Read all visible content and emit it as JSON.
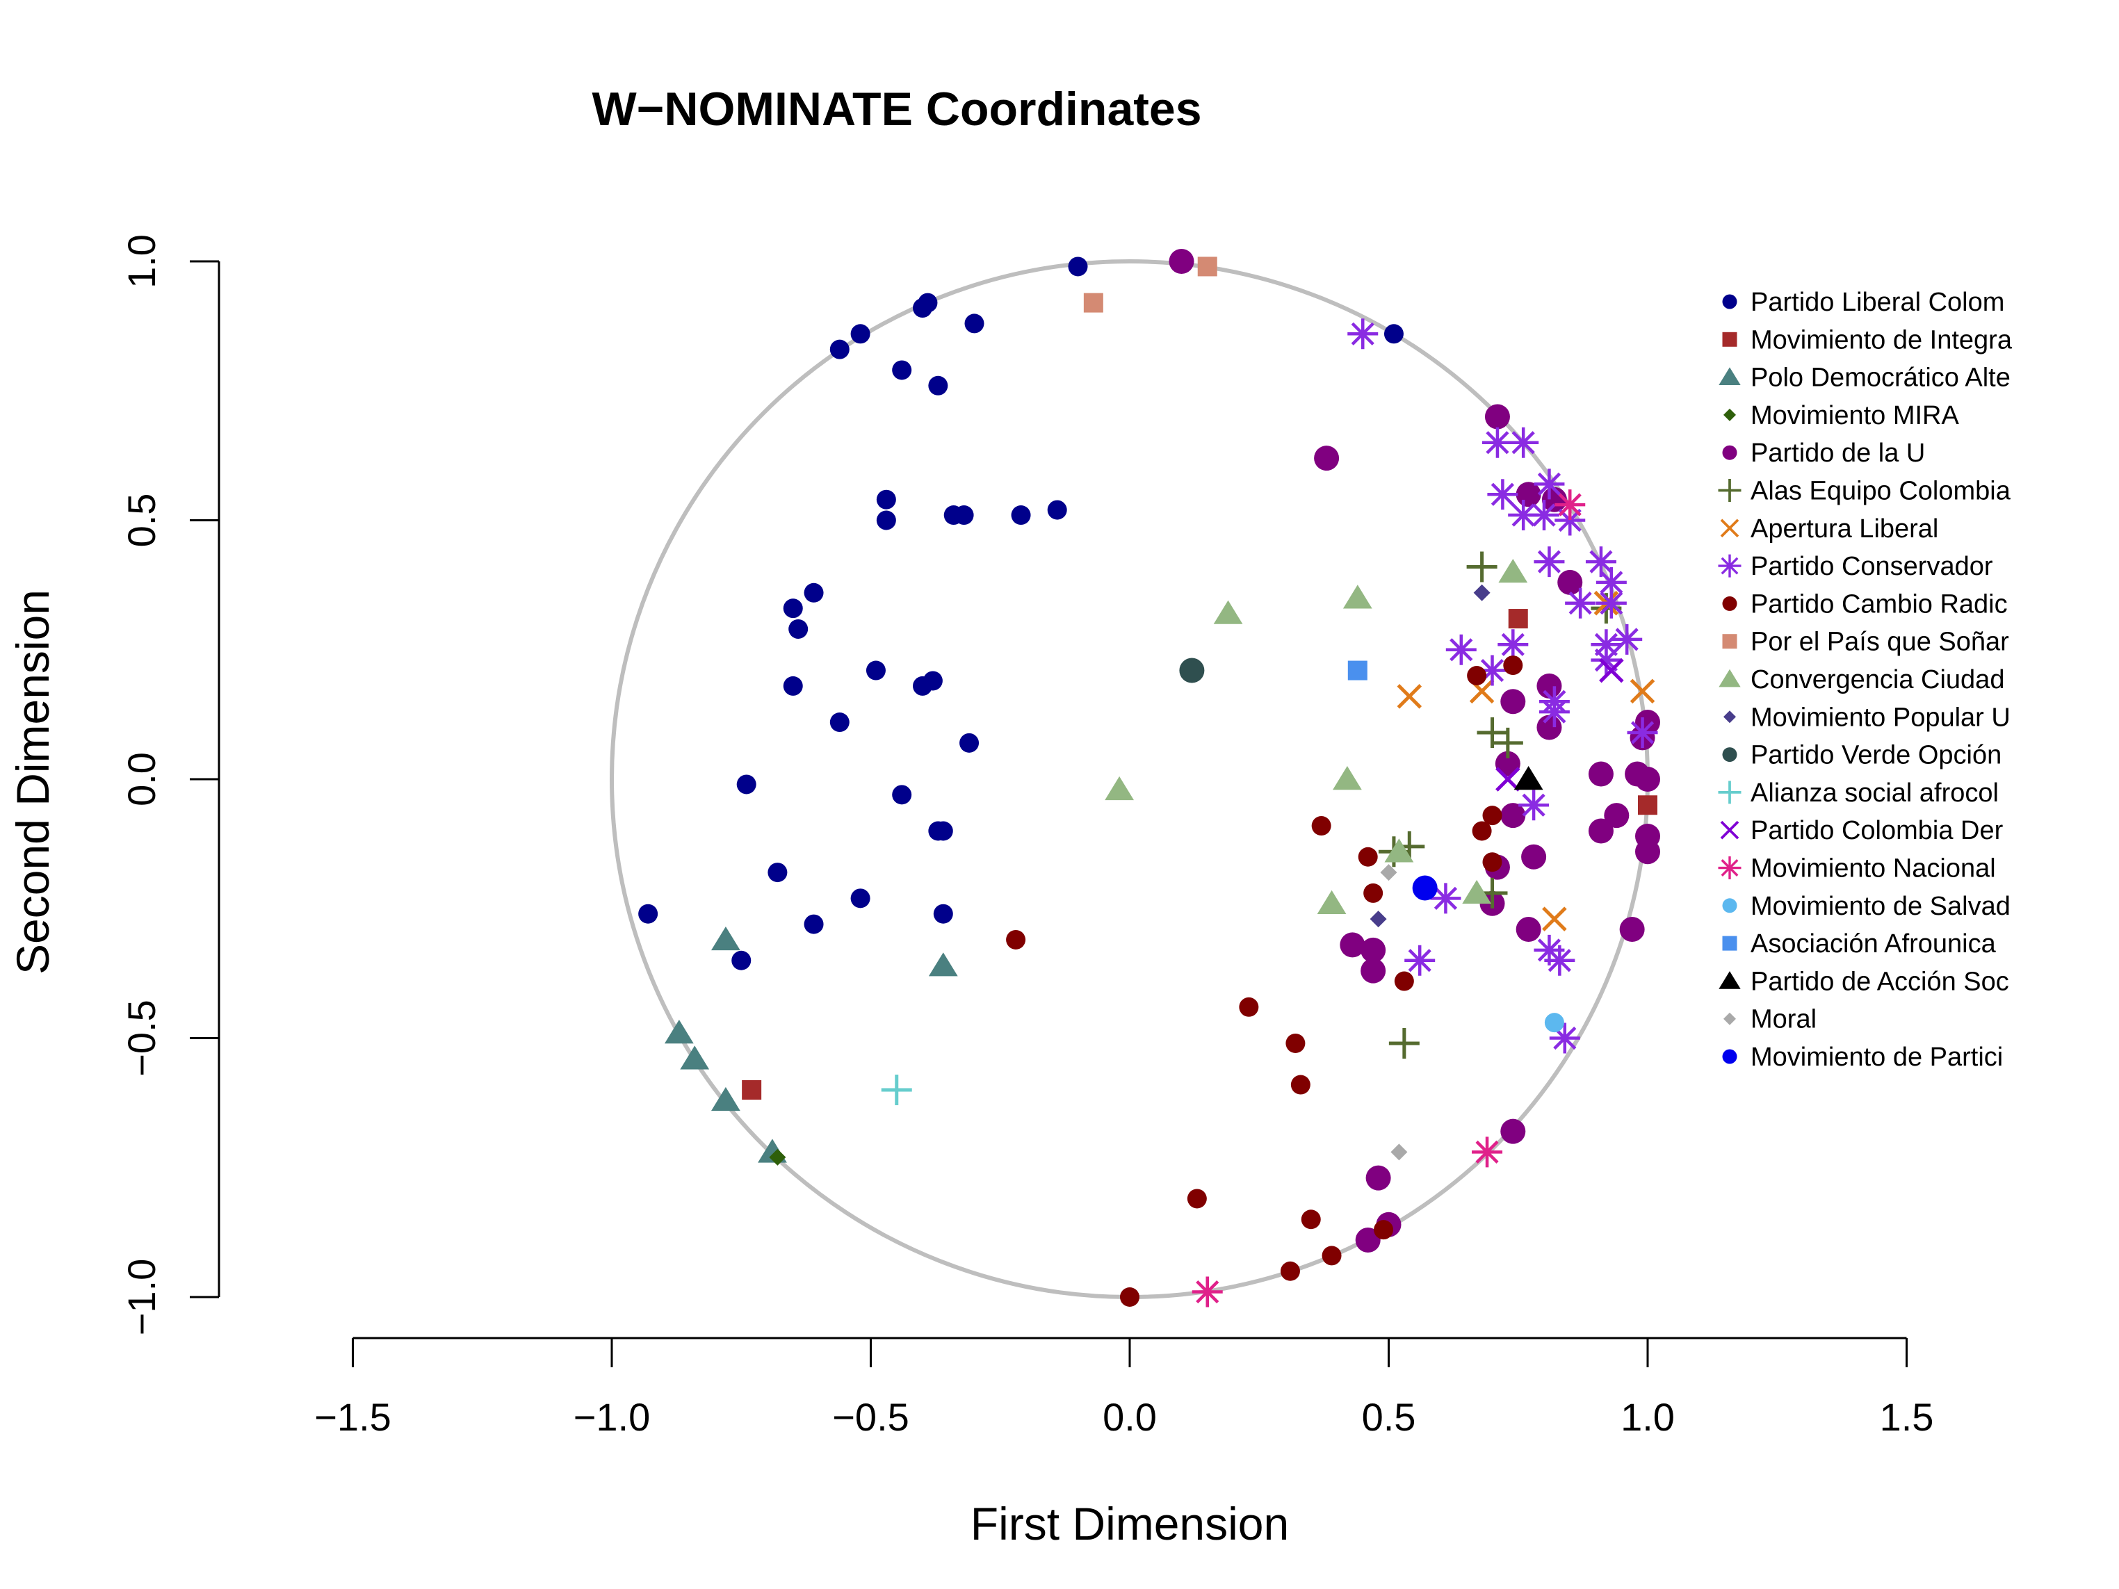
{
  "chart_data": {
    "type": "scatter",
    "title": "W−NOMINATE Coordinates",
    "xlabel": "First Dimension",
    "ylabel": "Second Dimension",
    "xlim": [
      -1.5,
      1.5
    ],
    "ylim": [
      -1.0,
      1.0
    ],
    "x_ticks": [
      "−1.5",
      "−1.0",
      "−0.5",
      "0.0",
      "0.5",
      "1.0",
      "1.5"
    ],
    "y_ticks": [
      "−1.0",
      "−0.5",
      "0.0",
      "0.5",
      "1.0"
    ],
    "grid": false,
    "unit_circle": true,
    "circle_color": "#bebebe",
    "legend_position": "right",
    "series": [
      {
        "name": "Partido Liberal Colom",
        "marker": "circle",
        "color": "#00008b",
        "points": [
          [
            -0.1,
            0.99
          ],
          [
            0.51,
            0.86
          ],
          [
            -0.39,
            0.92
          ],
          [
            -0.4,
            0.91
          ],
          [
            -0.3,
            0.88
          ],
          [
            -0.52,
            0.86
          ],
          [
            -0.56,
            0.83
          ],
          [
            -0.44,
            0.79
          ],
          [
            -0.37,
            0.76
          ],
          [
            -0.47,
            0.54
          ],
          [
            -0.47,
            0.5
          ],
          [
            -0.34,
            0.51
          ],
          [
            -0.32,
            0.51
          ],
          [
            -0.21,
            0.51
          ],
          [
            -0.14,
            0.52
          ],
          [
            -0.61,
            0.36
          ],
          [
            -0.65,
            0.33
          ],
          [
            -0.64,
            0.29
          ],
          [
            -0.49,
            0.21
          ],
          [
            -0.65,
            0.18
          ],
          [
            -0.4,
            0.18
          ],
          [
            -0.38,
            0.19
          ],
          [
            -0.56,
            0.11
          ],
          [
            -0.31,
            0.07
          ],
          [
            -0.74,
            -0.01
          ],
          [
            -0.44,
            -0.03
          ],
          [
            -0.36,
            -0.1
          ],
          [
            -0.37,
            -0.1
          ],
          [
            -0.68,
            -0.18
          ],
          [
            -0.52,
            -0.23
          ],
          [
            -0.61,
            -0.28
          ],
          [
            -0.36,
            -0.26
          ],
          [
            -0.93,
            -0.26
          ],
          [
            -0.75,
            -0.35
          ]
        ]
      },
      {
        "name": "Movimiento de Integra",
        "marker": "square",
        "color": "#a52a2a",
        "points": [
          [
            0.75,
            0.31
          ],
          [
            1.0,
            -0.05
          ],
          [
            -0.73,
            -0.6
          ]
        ]
      },
      {
        "name": "Polo Democrático Alte",
        "marker": "triangle",
        "color": "#4a8080",
        "points": [
          [
            -0.78,
            -0.31
          ],
          [
            -0.36,
            -0.36
          ],
          [
            -0.87,
            -0.49
          ],
          [
            -0.84,
            -0.54
          ],
          [
            -0.78,
            -0.62
          ],
          [
            -0.69,
            -0.72
          ]
        ]
      },
      {
        "name": "Movimiento MIRA",
        "marker": "diamond",
        "color": "#2e5f0a",
        "points": [
          [
            -0.68,
            -0.73
          ]
        ]
      },
      {
        "name": "Partido de la U",
        "marker": "circle-big",
        "color": "#800080",
        "points": [
          [
            0.1,
            1.0
          ],
          [
            0.38,
            0.62
          ],
          [
            0.71,
            0.7
          ],
          [
            0.77,
            0.55
          ],
          [
            0.82,
            0.54
          ],
          [
            0.85,
            0.38
          ],
          [
            0.81,
            0.18
          ],
          [
            0.74,
            0.15
          ],
          [
            0.81,
            0.1
          ],
          [
            0.73,
            0.03
          ],
          [
            1.0,
            0.11
          ],
          [
            0.99,
            0.08
          ],
          [
            0.91,
            0.01
          ],
          [
            0.98,
            0.01
          ],
          [
            1.0,
            0.0
          ],
          [
            0.74,
            -0.07
          ],
          [
            0.91,
            -0.1
          ],
          [
            0.94,
            -0.07
          ],
          [
            1.0,
            -0.11
          ],
          [
            1.0,
            -0.14
          ],
          [
            0.78,
            -0.15
          ],
          [
            0.71,
            -0.17
          ],
          [
            0.7,
            -0.24
          ],
          [
            0.43,
            -0.32
          ],
          [
            0.47,
            -0.33
          ],
          [
            0.47,
            -0.37
          ],
          [
            0.77,
            -0.29
          ],
          [
            0.97,
            -0.29
          ],
          [
            0.74,
            -0.68
          ],
          [
            0.48,
            -0.77
          ],
          [
            0.5,
            -0.86
          ],
          [
            0.46,
            -0.89
          ]
        ]
      },
      {
        "name": "Alas Equipo Colombia",
        "marker": "plus",
        "color": "#556b2f",
        "points": [
          [
            0.68,
            0.41
          ],
          [
            0.7,
            0.09
          ],
          [
            0.73,
            0.07
          ],
          [
            0.54,
            -0.13
          ],
          [
            0.51,
            -0.14
          ],
          [
            0.7,
            -0.22
          ],
          [
            0.53,
            -0.51
          ],
          [
            0.92,
            0.33
          ]
        ]
      },
      {
        "name": "Apertura Liberal",
        "marker": "x",
        "color": "#e07b1a",
        "points": [
          [
            0.54,
            0.16
          ],
          [
            0.68,
            0.17
          ],
          [
            0.99,
            0.17
          ],
          [
            0.82,
            -0.27
          ],
          [
            0.92,
            0.34
          ]
        ]
      },
      {
        "name": "Partido Conservador",
        "marker": "star",
        "color": "#8a2be2",
        "points": [
          [
            0.45,
            0.86
          ],
          [
            0.71,
            0.65
          ],
          [
            0.76,
            0.65
          ],
          [
            0.72,
            0.55
          ],
          [
            0.81,
            0.57
          ],
          [
            0.76,
            0.51
          ],
          [
            0.8,
            0.51
          ],
          [
            0.85,
            0.5
          ],
          [
            0.81,
            0.42
          ],
          [
            0.91,
            0.42
          ],
          [
            0.93,
            0.38
          ],
          [
            0.87,
            0.34
          ],
          [
            0.93,
            0.34
          ],
          [
            0.92,
            0.26
          ],
          [
            0.96,
            0.27
          ],
          [
            0.92,
            0.23
          ],
          [
            0.64,
            0.25
          ],
          [
            0.7,
            0.21
          ],
          [
            0.74,
            0.26
          ],
          [
            0.82,
            0.13
          ],
          [
            0.82,
            0.15
          ],
          [
            0.99,
            0.09
          ],
          [
            0.78,
            -0.05
          ],
          [
            0.61,
            -0.23
          ],
          [
            0.56,
            -0.35
          ],
          [
            0.81,
            -0.33
          ],
          [
            0.83,
            -0.35
          ],
          [
            0.84,
            -0.5
          ]
        ]
      },
      {
        "name": "Partido Cambio Radic",
        "marker": "circle",
        "color": "#800000",
        "points": [
          [
            0.67,
            0.2
          ],
          [
            0.74,
            0.22
          ],
          [
            0.37,
            -0.09
          ],
          [
            0.68,
            -0.1
          ],
          [
            0.7,
            -0.07
          ],
          [
            0.7,
            -0.16
          ],
          [
            0.46,
            -0.15
          ],
          [
            0.47,
            -0.22
          ],
          [
            0.53,
            -0.39
          ],
          [
            -0.22,
            -0.31
          ],
          [
            0.23,
            -0.44
          ],
          [
            0.32,
            -0.51
          ],
          [
            0.33,
            -0.59
          ],
          [
            0.13,
            -0.81
          ],
          [
            0.35,
            -0.85
          ],
          [
            0.49,
            -0.87
          ],
          [
            0.39,
            -0.92
          ],
          [
            0.31,
            -0.95
          ],
          [
            0.0,
            -1.0
          ]
        ]
      },
      {
        "name": "Por el País que Soñar",
        "marker": "square",
        "color": "#d48a73",
        "points": [
          [
            0.15,
            0.99
          ],
          [
            -0.07,
            0.92
          ]
        ]
      },
      {
        "name": "Convergencia Ciudad",
        "marker": "triangle",
        "color": "#93b782",
        "points": [
          [
            0.74,
            0.4
          ],
          [
            0.19,
            0.32
          ],
          [
            0.44,
            0.35
          ],
          [
            -0.02,
            -0.02
          ],
          [
            0.42,
            0.0
          ],
          [
            0.52,
            -0.14
          ],
          [
            0.39,
            -0.24
          ],
          [
            0.67,
            -0.22
          ]
        ]
      },
      {
        "name": "Movimiento Popular U",
        "marker": "diamond",
        "color": "#483d8b",
        "points": [
          [
            0.68,
            0.36
          ],
          [
            0.48,
            -0.27
          ]
        ]
      },
      {
        "name": "Partido Verde Opción",
        "marker": "circle-big",
        "color": "#2f4f4f",
        "points": [
          [
            0.12,
            0.21
          ]
        ]
      },
      {
        "name": "Alianza social afrocol",
        "marker": "plus",
        "color": "#66cdcd",
        "points": [
          [
            -0.45,
            -0.6
          ]
        ]
      },
      {
        "name": "Partido Colombia Der",
        "marker": "x",
        "color": "#7f00d4",
        "points": [
          [
            0.93,
            0.21
          ],
          [
            0.73,
            0.0
          ]
        ]
      },
      {
        "name": "Movimiento Nacional",
        "marker": "star",
        "color": "#e0218a",
        "points": [
          [
            0.85,
            0.53
          ],
          [
            0.69,
            -0.72
          ],
          [
            0.15,
            -0.99
          ]
        ]
      },
      {
        "name": "Movimiento de Salvad",
        "marker": "circle",
        "color": "#5cb8ef",
        "points": [
          [
            0.82,
            -0.47
          ]
        ]
      },
      {
        "name": "Asociación Afrounica",
        "marker": "square",
        "color": "#4a90ee",
        "points": [
          [
            0.44,
            0.21
          ]
        ]
      },
      {
        "name": "Partido de Acción Soc",
        "marker": "triangle",
        "color": "#000000",
        "points": [
          [
            0.77,
            0.0
          ]
        ]
      },
      {
        "name": "Moral",
        "marker": "diamond",
        "color": "#a9a9a9",
        "points": [
          [
            0.5,
            -0.18
          ],
          [
            0.52,
            -0.72
          ]
        ]
      },
      {
        "name": "Movimiento de Partici",
        "marker": "circle-big",
        "color": "#0000ee",
        "points": [
          [
            0.57,
            -0.21
          ]
        ]
      }
    ]
  }
}
